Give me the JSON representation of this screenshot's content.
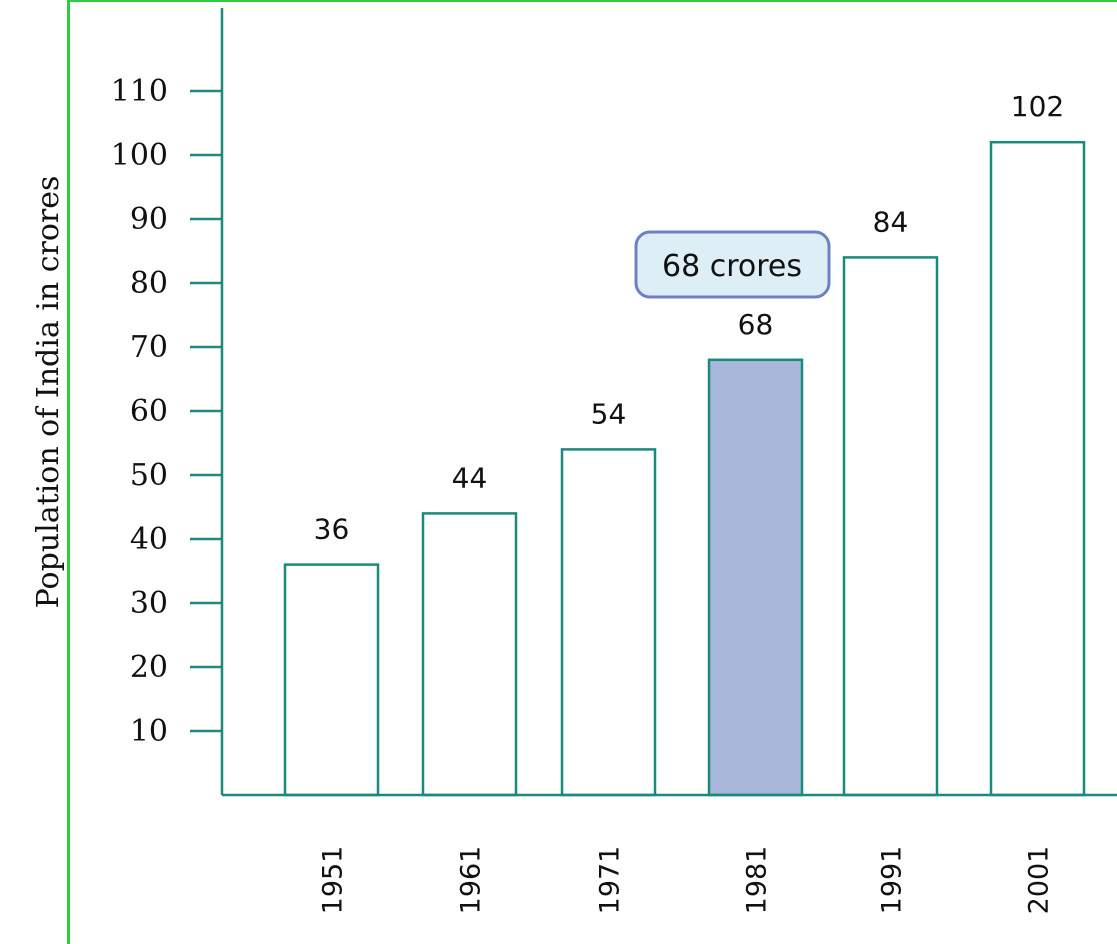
{
  "chart_data": {
    "type": "bar",
    "ylabel": "Population of India in crores",
    "categories": [
      "1951",
      "1961",
      "1971",
      "1981",
      "1991",
      "2001"
    ],
    "values": [
      36,
      44,
      54,
      68,
      84,
      102
    ],
    "data_labels": [
      "36",
      "44",
      "54",
      "68",
      "84",
      "102"
    ],
    "yticks": [
      10,
      20,
      30,
      40,
      50,
      60,
      70,
      80,
      90,
      100,
      110
    ],
    "ylim": [
      0,
      115
    ],
    "grid": false,
    "highlight_category": "1981",
    "callout": {
      "text": "68 crores",
      "category": "1981"
    },
    "colors": {
      "axis": "#1a8a7a",
      "bar_stroke": "#1a8a7a",
      "bar_fill": "#ffffff",
      "highlight_fill": "#a9b8d9",
      "callout_fill": "#deeef6",
      "callout_stroke": "#6f7fc4",
      "page_frame": "#2ecc40"
    }
  }
}
